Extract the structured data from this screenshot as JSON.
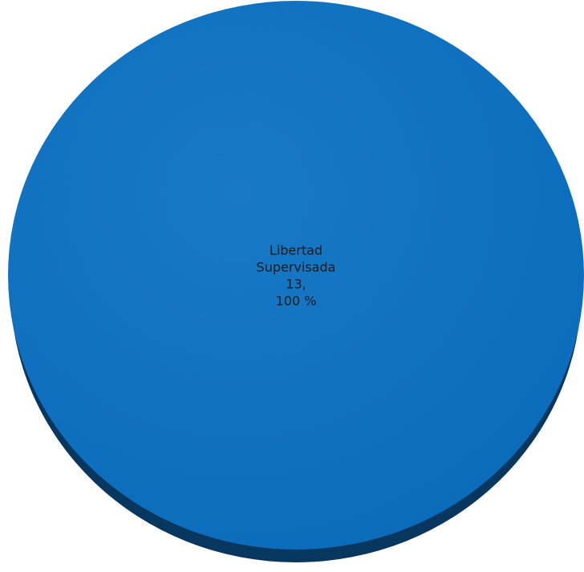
{
  "chart_data": {
    "type": "pie",
    "title": "",
    "slices": [
      {
        "label": "Libertad Supervisada",
        "value": 13,
        "percent": 100,
        "value_text": "13,",
        "percent_text": "100 %",
        "color": "#0c70c0",
        "shadow_color": "#07365e"
      }
    ],
    "style": "3d",
    "legend": "none",
    "data_labels": "inside"
  }
}
